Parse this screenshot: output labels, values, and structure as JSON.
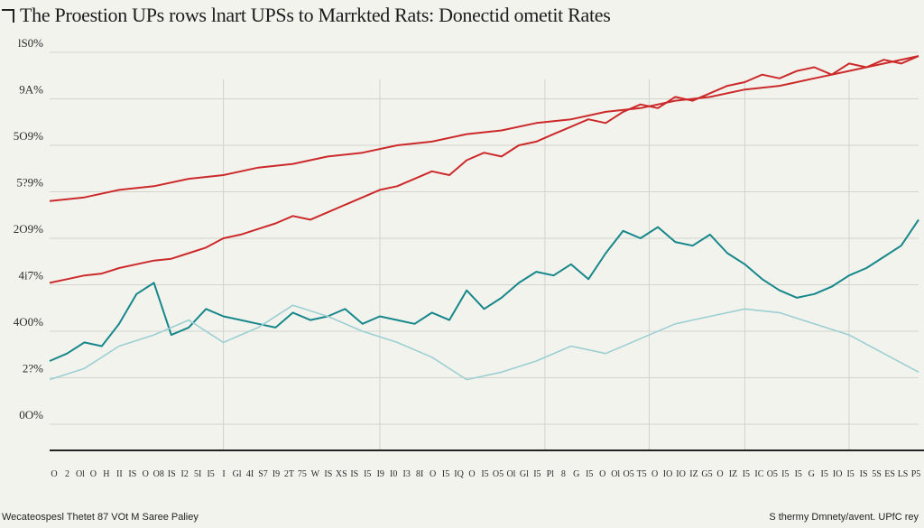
{
  "header": {
    "title": "The Proestion UPs rows lnart UPSs to Marrkted Rats: Donectid ometit Rates"
  },
  "footer": {
    "left_note": "Wecateospesl Thetet 87 VOt M Saree Paliey",
    "right_note": "S thermy Dmnety/avent. UPfC rey"
  },
  "colors": {
    "background": "#f3f3ee",
    "series_red": "#cc2a2a",
    "series_teal": "#16878a",
    "series_light": "#9ccfd2",
    "gridline": "#d3d3cc",
    "axis": "#222222"
  },
  "chart_data": {
    "type": "line",
    "title": "The Proestion UPs rows lnart UPSs to Marrkted Rats: Donectid ometit Rates",
    "xlabel": "",
    "ylabel": "",
    "grid": true,
    "x": [
      0,
      2,
      4,
      6,
      8,
      10,
      12,
      14,
      16,
      18,
      20,
      22,
      24,
      26,
      28,
      30,
      32,
      34,
      36,
      38,
      40,
      42,
      44,
      46,
      48,
      50,
      52,
      54,
      56,
      58,
      60,
      62,
      64,
      66,
      68,
      70,
      72,
      74,
      76,
      78,
      80,
      82,
      84,
      86,
      88,
      90,
      92,
      94,
      96,
      98,
      100
    ],
    "y_tick_labels": [
      "0O%",
      "2?%",
      "4O0%",
      "4i7%",
      "2O9%",
      "5?9%",
      "5O9%",
      "9A%",
      "lS0%"
    ],
    "x_tick_labels": [
      "O",
      "2",
      "Ol",
      "O",
      "H",
      "II",
      "IS",
      "O",
      "O8",
      "IS",
      "I2",
      "5I",
      "I5",
      "I",
      "Gl",
      "4I",
      "S7",
      "I9",
      "2T",
      "75",
      "W",
      "IS",
      "XS",
      "IS",
      "I5",
      "I9",
      "I0",
      "I3",
      "8I",
      "O",
      "I5",
      "IQ",
      "O",
      "I5",
      "O5",
      "Ol",
      "Gl",
      "I5",
      "Pl",
      "8",
      "G",
      "I5",
      "O",
      "Ol",
      "O5",
      "T5",
      "O",
      "IO",
      "IO",
      "IZ",
      "G5",
      "O",
      "IZ",
      "I5",
      "IC",
      "O5",
      "I5",
      "I5",
      "G",
      "I5",
      "IO",
      "I5",
      "IS",
      "5S",
      "ES",
      "LS",
      "P5"
    ],
    "series": [
      {
        "color": "#cc2a2a",
        "segments": [
          {
            "x": [
              0,
              2,
              4,
              6,
              8,
              10,
              12,
              14,
              16,
              18,
              20,
              22,
              24,
              26,
              28,
              30,
              32,
              34,
              36,
              38,
              40,
              42,
              44,
              46,
              48,
              50,
              52,
              54,
              56,
              58,
              60,
              62,
              64,
              66,
              68,
              70,
              72,
              74,
              76,
              78,
              80,
              82,
              84,
              86,
              88,
              90,
              92,
              94,
              96,
              98,
              100
            ],
            "y": [
              38,
              39,
              40,
              40.5,
              42,
              43,
              44,
              44.5,
              46,
              47.5,
              50,
              51,
              52.5,
              54,
              56,
              55,
              57,
              59,
              61,
              63,
              64,
              66,
              68,
              67,
              71,
              73,
              72,
              75,
              76,
              78,
              80,
              82,
              81,
              84,
              86,
              85,
              88,
              87,
              89,
              91,
              92,
              94,
              93,
              95,
              96,
              94,
              97,
              96,
              98,
              97,
              99
            ]
          },
          {
            "x": [
              0,
              4,
              8,
              12,
              16,
              20,
              24,
              28,
              32,
              36,
              40,
              44,
              48,
              52,
              56,
              60,
              64,
              68,
              72,
              76,
              80,
              84,
              88,
              92,
              96,
              100
            ],
            "y": [
              60,
              61,
              63,
              64,
              66,
              67,
              69,
              70,
              72,
              73,
              75,
              76,
              78,
              79,
              81,
              82,
              84,
              85,
              87,
              88,
              90,
              91,
              93,
              95,
              97,
              99
            ]
          }
        ]
      },
      {
        "color": "#16878a",
        "segments": [
          {
            "x": [
              0,
              2,
              4,
              6,
              8,
              10,
              12,
              14,
              16,
              18,
              20,
              22,
              24,
              26,
              28,
              30,
              32,
              34,
              36,
              38,
              40,
              42,
              44,
              46,
              48,
              50,
              52,
              54,
              56,
              58,
              60,
              62,
              64,
              66,
              68,
              70,
              72,
              74,
              76,
              78,
              80,
              82,
              84,
              86,
              88,
              90,
              92,
              94,
              96,
              98,
              100
            ],
            "y": [
              17,
              19,
              22,
              21,
              27,
              35,
              38,
              24,
              26,
              31,
              29,
              28,
              27,
              26,
              30,
              28,
              29,
              31,
              27,
              29,
              28,
              27,
              30,
              28,
              36,
              31,
              34,
              38,
              41,
              40,
              43,
              39,
              46,
              52,
              50,
              53,
              49,
              48,
              51,
              46,
              43,
              39,
              36,
              34,
              35,
              37,
              40,
              42,
              45,
              48,
              55
            ]
          }
        ]
      },
      {
        "color": "#9ccfd2",
        "segments": [
          {
            "x": [
              0,
              4,
              8,
              12,
              16,
              20,
              24,
              28,
              32,
              36,
              40,
              44,
              48,
              52,
              56,
              60,
              64,
              68,
              72,
              76,
              80,
              84,
              88,
              92,
              96,
              100
            ],
            "y": [
              12,
              15,
              21,
              24,
              28,
              22,
              26,
              32,
              29,
              25,
              22,
              18,
              12,
              14,
              17,
              21,
              19,
              23,
              27,
              29,
              31,
              30,
              27,
              24,
              19,
              14
            ]
          }
        ]
      }
    ]
  }
}
